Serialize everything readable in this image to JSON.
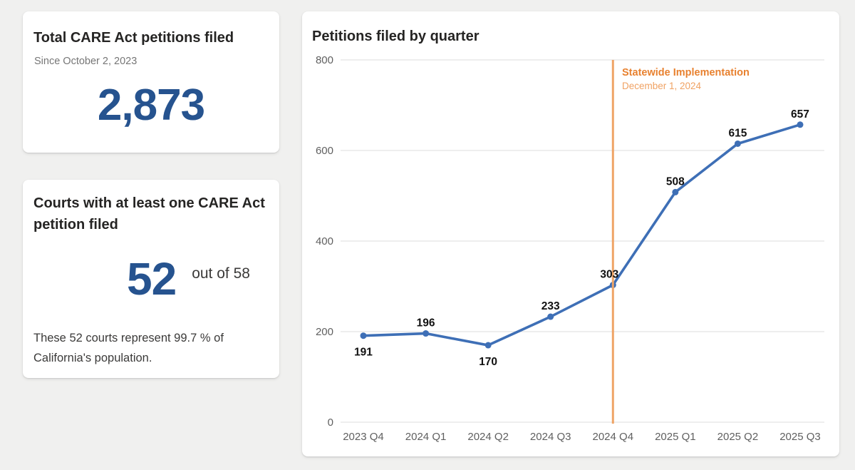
{
  "page": {
    "background": "#f0f0ef"
  },
  "colors": {
    "kpi_blue": "#26538f",
    "title_text": "#252423",
    "subtitle_text": "#767676",
    "body_text": "#3b3a39"
  },
  "cards": {
    "total_petitions": {
      "title": "Total CARE Act petitions filed",
      "subtitle": "Since October 2, 2023",
      "value": "2,873"
    },
    "courts": {
      "title": "Courts with at least one CARE Act petition filed",
      "value": "52",
      "suffix": "out of 58",
      "note": "These 52 courts represent 99.7 % of California's population."
    }
  },
  "chart_data": {
    "type": "line",
    "title": "Petitions filed by quarter",
    "categories": [
      "2023 Q4",
      "2024 Q1",
      "2024 Q2",
      "2024 Q3",
      "2024 Q4",
      "2025 Q1",
      "2025 Q2",
      "2025 Q3"
    ],
    "series": [
      {
        "name": "Petitions filed",
        "values": [
          191,
          196,
          170,
          233,
          303,
          508,
          615,
          657
        ]
      }
    ],
    "data_label_positions": [
      "below",
      "above",
      "below",
      "above",
      "above",
      "above",
      "above",
      "above"
    ],
    "ylim": [
      0,
      800
    ],
    "yticks": [
      0,
      200,
      400,
      600,
      800
    ],
    "grid": true,
    "legend": "none",
    "xlabel": "",
    "ylabel": "",
    "colors": {
      "line": "#3e6fb6",
      "data_label": "#111111",
      "axis_label": "#5f5f5f",
      "gridline": "#e3e3e3"
    },
    "annotation": {
      "category": "2024 Q4",
      "title": "Statewide Implementation",
      "subtitle": "December 1, 2024",
      "line_color": "#efa466",
      "title_color": "#e8812f",
      "subtitle_color": "#f0a263"
    }
  }
}
